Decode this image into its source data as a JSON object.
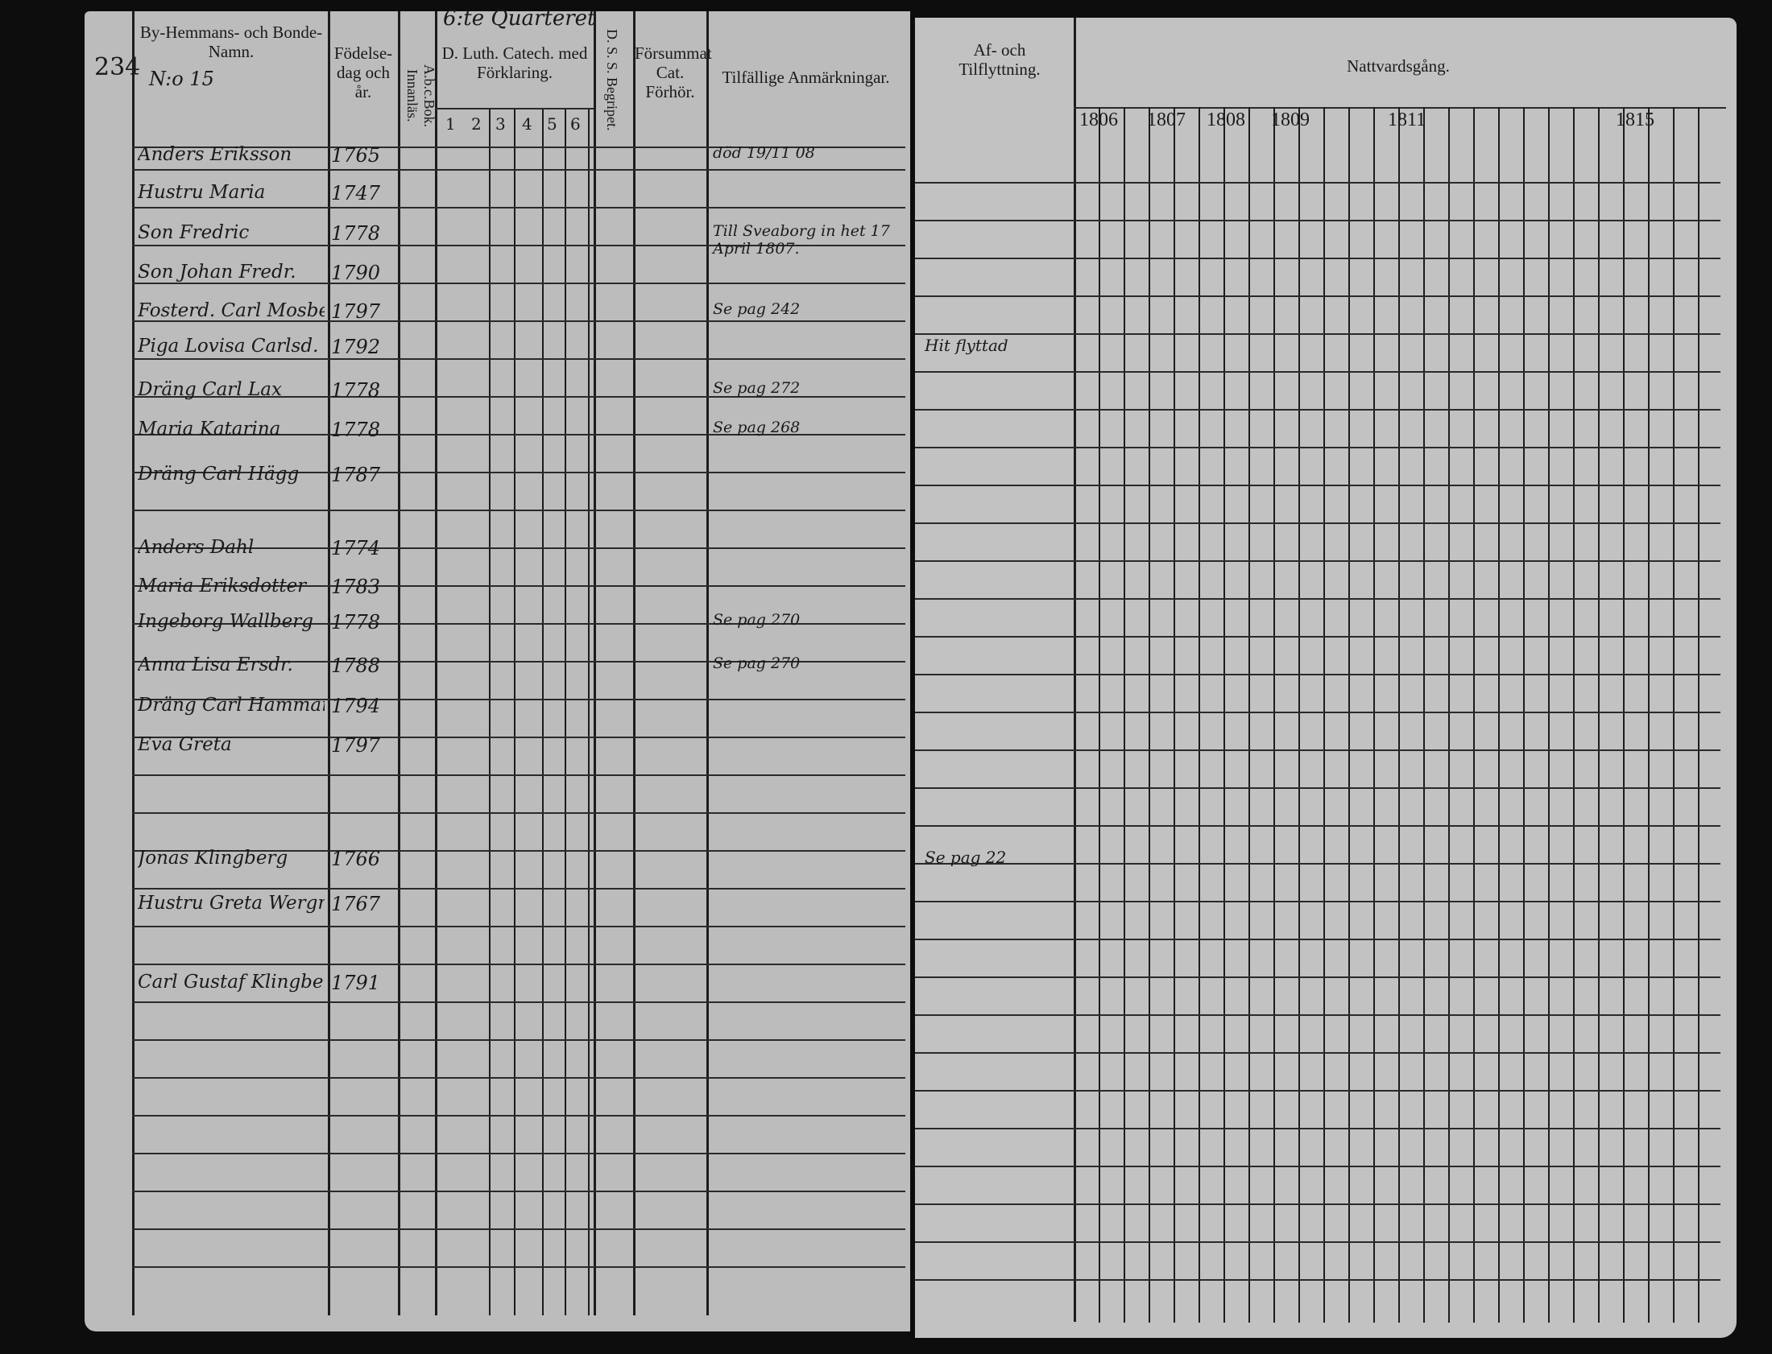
{
  "page_number": "234",
  "left_page": {
    "quarter": "6:te Quarteret",
    "headers": {
      "name": "By-Hemmans- och Bonde-Namn.",
      "birth": "Födelse-dag och år.",
      "abc": "A.b.c.Bok. Innanläs.",
      "catechism": "D. Luth. Catech. med Förklaring.",
      "begripet": "D. S. S. Begripet.",
      "forsummat": "Försummat Cat. Förhör.",
      "remarks": "Tilfällige Anmärkningar."
    },
    "catechism_columns": [
      "1",
      "2",
      "3",
      "4",
      "5",
      "6"
    ],
    "farm": "N:o 15",
    "rows": [
      {
        "name": "Anders Eriksson",
        "year": "1765"
      },
      {
        "name": "Hustru Maria",
        "year": "1747"
      },
      {
        "name": "Son Fredric",
        "year": "1778"
      },
      {
        "name": "Son Johan Fredr.",
        "year": "1790"
      },
      {
        "name": "Fosterd. Carl Mosberg",
        "year": "1797"
      },
      {
        "name": "Piga Lovisa Carlsd.",
        "year": "1792"
      },
      {
        "name": "Dräng Carl Lax",
        "year": "1778"
      },
      {
        "name": "Maria Katarina",
        "year": "1778"
      },
      {
        "name": "Dräng Carl Hägg",
        "year": "1787"
      },
      {
        "name": "Anders Dahl",
        "year": "1774"
      },
      {
        "name": "Maria Eriksdotter",
        "year": "1783"
      },
      {
        "name": "Ingeborg Wallberg",
        "year": "1778"
      },
      {
        "name": "Anna Lisa Ersdr.",
        "year": "1788"
      },
      {
        "name": "Dräng Carl Hammar",
        "year": "1794"
      },
      {
        "name": "Eva Greta",
        "year": "1797"
      },
      {
        "name": "Jonas Klingberg",
        "year": "1766"
      },
      {
        "name": "Hustru Greta Wergmander",
        "year": "1767"
      },
      {
        "name": "Carl Gustaf Klingberg",
        "year": "1791"
      }
    ],
    "remarks": [
      {
        "row": 0,
        "text": "död 19/11 08"
      },
      {
        "row": 2,
        "text": "Till Sveaborg in het 17 April 1807."
      },
      {
        "row": 4,
        "text": "Se pag 242"
      },
      {
        "row": 6,
        "text": "Se pag 272"
      },
      {
        "row": 7,
        "text": "Se pag 268"
      },
      {
        "row": 11,
        "text": "Se pag 270"
      },
      {
        "row": 12,
        "text": "Se pag 270"
      }
    ]
  },
  "right_page": {
    "headers": {
      "moves": "Af- och Tilflyttning.",
      "communion": "Nattvardsgång."
    },
    "years": [
      "1806",
      "1807",
      "1808",
      "1809",
      "1811",
      "1815"
    ],
    "moves": [
      {
        "row": 5,
        "text": "Hit flyttad"
      },
      {
        "row": 15,
        "text": "Se pag 22"
      }
    ]
  }
}
